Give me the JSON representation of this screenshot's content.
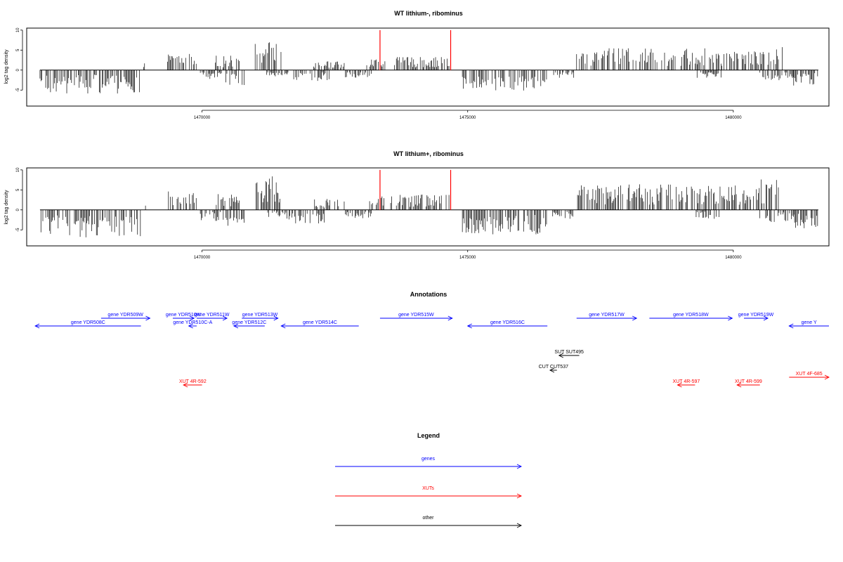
{
  "panels": [
    {
      "title": "WT lithium-, ribominus",
      "ylabel": "log2 tag density",
      "yticks": [
        -5,
        0,
        5,
        10
      ],
      "ylim": [
        -9,
        10.5
      ],
      "xlim": [
        1466700,
        1481800
      ],
      "xticks": [
        1470000,
        1475000,
        1480000
      ],
      "tick_labels": [
        "1470000",
        "1475000",
        "1480000"
      ],
      "red_lines": [
        1473350,
        1474680
      ],
      "red_top": 10,
      "bar_color": "#000000",
      "red_color": "#ff0000",
      "scale": 1.0,
      "min_abs": 0.6
    },
    {
      "title": "WT lithium+, ribominus",
      "ylabel": "log2 tag density",
      "yticks": [
        -5,
        0,
        5,
        10
      ],
      "ylim": [
        -9,
        10.5
      ],
      "xlim": [
        1466700,
        1481800
      ],
      "xticks": [
        1470000,
        1475000,
        1480000
      ],
      "tick_labels": [
        "1470000",
        "1475000",
        "1480000"
      ],
      "red_lines": [
        1473350,
        1474680
      ],
      "red_top": 10,
      "bar_color": "#000000",
      "red_color": "#ff0000",
      "scale": 1.18,
      "min_abs": 0.4
    }
  ],
  "chart_data": {
    "type": "bar",
    "x_unit": "genomic coordinate",
    "ylabel": "log2 tag density",
    "signal_segments": [
      {
        "start": 1466950,
        "end": 1468850,
        "strand": "-",
        "level": -4.5
      },
      {
        "start": 1468900,
        "end": 1468950,
        "strand": "+",
        "level": 2.5
      },
      {
        "start": 1469350,
        "end": 1469900,
        "strand": "+",
        "level": 3.2
      },
      {
        "start": 1469950,
        "end": 1470400,
        "strand": "-",
        "level": -1.8
      },
      {
        "start": 1470250,
        "end": 1470700,
        "strand": "+",
        "level": 2.8
      },
      {
        "start": 1470450,
        "end": 1470800,
        "strand": "-",
        "level": -3.0
      },
      {
        "start": 1471000,
        "end": 1471500,
        "strand": "+",
        "level": 5.5
      },
      {
        "start": 1471200,
        "end": 1471600,
        "strand": "-",
        "level": -1.2
      },
      {
        "start": 1471600,
        "end": 1472400,
        "strand": "-",
        "level": -2.2
      },
      {
        "start": 1472100,
        "end": 1472700,
        "strand": "+",
        "level": 1.8
      },
      {
        "start": 1472700,
        "end": 1473200,
        "strand": "-",
        "level": -1.5
      },
      {
        "start": 1473100,
        "end": 1473450,
        "strand": "+",
        "level": 2.2
      },
      {
        "start": 1473550,
        "end": 1474650,
        "strand": "+",
        "level": 2.5
      },
      {
        "start": 1474900,
        "end": 1476500,
        "strand": "-",
        "level": -4.0
      },
      {
        "start": 1476600,
        "end": 1477000,
        "strand": "-",
        "level": -1.5
      },
      {
        "start": 1477050,
        "end": 1480200,
        "strand": "+",
        "level": 4.2
      },
      {
        "start": 1479300,
        "end": 1479800,
        "strand": "-",
        "level": -1.5
      },
      {
        "start": 1480200,
        "end": 1480950,
        "strand": "+",
        "level": 5.0
      },
      {
        "start": 1480500,
        "end": 1481150,
        "strand": "-",
        "level": -2.0
      },
      {
        "start": 1481100,
        "end": 1481600,
        "strand": "-",
        "level": -3.0
      }
    ]
  },
  "annotations": {
    "title": "Annotations",
    "xlim": [
      1466700,
      1481800
    ],
    "features": [
      {
        "label": "gene YDR508C",
        "color": "#0000ff",
        "start": 1466860,
        "end": 1468850,
        "dir": "left",
        "row": 1
      },
      {
        "label": "gene YDR509W",
        "color": "#0000ff",
        "start": 1468100,
        "end": 1469020,
        "dir": "right",
        "row": 0
      },
      {
        "label": "gene YDR510W",
        "color": "#0000ff",
        "start": 1469450,
        "end": 1469850,
        "dir": "right",
        "row": 0
      },
      {
        "label": "gene YDR510C-A",
        "color": "#0000ff",
        "start": 1469750,
        "end": 1469900,
        "dir": "left",
        "row": 1
      },
      {
        "label": "gene YDR511W",
        "color": "#0000ff",
        "start": 1469900,
        "end": 1470470,
        "dir": "right",
        "row": 0
      },
      {
        "label": "gene YDR512C",
        "color": "#0000ff",
        "start": 1470600,
        "end": 1471180,
        "dir": "left",
        "row": 1
      },
      {
        "label": "gene YDR513W",
        "color": "#0000ff",
        "start": 1470750,
        "end": 1471430,
        "dir": "right",
        "row": 0
      },
      {
        "label": "gene YDR514C",
        "color": "#0000ff",
        "start": 1471490,
        "end": 1472950,
        "dir": "left",
        "row": 1
      },
      {
        "label": "gene YDR515W",
        "color": "#0000ff",
        "start": 1473350,
        "end": 1474710,
        "dir": "right",
        "row": 0
      },
      {
        "label": "gene YDR516C",
        "color": "#0000ff",
        "start": 1475000,
        "end": 1476500,
        "dir": "left",
        "row": 1
      },
      {
        "label": "gene YDR517W",
        "color": "#0000ff",
        "start": 1477050,
        "end": 1478180,
        "dir": "right",
        "row": 0
      },
      {
        "label": "gene YDR518W",
        "color": "#0000ff",
        "start": 1478420,
        "end": 1479980,
        "dir": "right",
        "row": 0
      },
      {
        "label": "gene YDR519W",
        "color": "#0000ff",
        "start": 1480200,
        "end": 1480650,
        "dir": "right",
        "row": 0
      },
      {
        "label": "gene Y",
        "color": "#0000ff",
        "start": 1481050,
        "end": 1481800,
        "dir": "left",
        "row": 1
      },
      {
        "label": "SUT SUT495",
        "color": "#000000",
        "start": 1476720,
        "end": 1477100,
        "dir": "left",
        "row": 2
      },
      {
        "label": "CUT CUT537",
        "color": "#000000",
        "start": 1476550,
        "end": 1476680,
        "dir": "left",
        "row": 3
      },
      {
        "label": "XUT 4R-592",
        "color": "#ff0000",
        "start": 1469650,
        "end": 1470000,
        "dir": "left",
        "row": 4
      },
      {
        "label": "XUT 4F-685",
        "color": "#ff0000",
        "start": 1481050,
        "end": 1481800,
        "dir": "right",
        "row": 5
      },
      {
        "label": "XUT 4R-597",
        "color": "#ff0000",
        "start": 1478950,
        "end": 1479280,
        "dir": "left",
        "row": 4
      },
      {
        "label": "XUT 4R-599",
        "color": "#ff0000",
        "start": 1480070,
        "end": 1480500,
        "dir": "left",
        "row": 4
      }
    ]
  },
  "legend": {
    "title": "Legend",
    "items": [
      {
        "label": "genes",
        "color": "#0000ff"
      },
      {
        "label": "XUTs",
        "color": "#ff0000"
      },
      {
        "label": "other",
        "color": "#000000"
      }
    ]
  }
}
